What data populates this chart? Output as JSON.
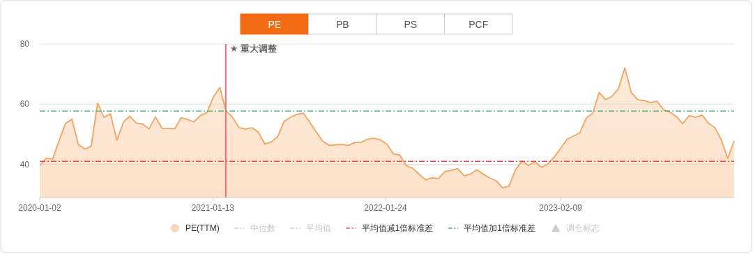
{
  "chart_data": {
    "type": "area",
    "x": [
      "2020-01-02",
      "2020-01-16",
      "2020-01-30",
      "2020-02-13",
      "2020-02-27",
      "2020-03-12",
      "2020-03-26",
      "2020-04-09",
      "2020-04-23",
      "2020-05-07",
      "2020-05-21",
      "2020-06-04",
      "2020-06-18",
      "2020-07-02",
      "2020-07-16",
      "2020-07-30",
      "2020-08-13",
      "2020-08-27",
      "2020-09-10",
      "2020-09-24",
      "2020-10-08",
      "2020-10-22",
      "2020-11-05",
      "2020-11-19",
      "2020-12-03",
      "2020-12-17",
      "2020-12-31",
      "2021-01-14",
      "2021-01-28",
      "2021-02-11",
      "2021-02-25",
      "2021-03-11",
      "2021-03-25",
      "2021-04-08",
      "2021-04-22",
      "2021-05-06",
      "2021-05-20",
      "2021-06-03",
      "2021-06-17",
      "2021-07-01",
      "2021-07-15",
      "2021-07-29",
      "2021-08-12",
      "2021-08-26",
      "2021-09-09",
      "2021-09-23",
      "2021-10-07",
      "2021-10-21",
      "2021-11-04",
      "2021-11-18",
      "2021-12-02",
      "2021-12-16",
      "2021-12-30",
      "2022-01-13",
      "2022-01-27",
      "2022-02-10",
      "2022-02-24",
      "2022-03-10",
      "2022-03-24",
      "2022-04-07",
      "2022-04-21",
      "2022-05-05",
      "2022-05-19",
      "2022-06-02",
      "2022-06-16",
      "2022-06-30",
      "2022-07-14",
      "2022-07-28",
      "2022-08-11",
      "2022-08-25",
      "2022-09-08",
      "2022-09-22",
      "2022-10-06",
      "2022-10-20",
      "2022-11-03",
      "2022-11-17",
      "2022-12-01",
      "2022-12-15",
      "2022-12-29",
      "2023-01-12",
      "2023-01-26",
      "2023-02-09",
      "2023-02-23",
      "2023-03-09",
      "2023-03-23",
      "2023-04-06",
      "2023-04-20",
      "2023-05-04",
      "2023-05-18",
      "2023-06-01",
      "2023-06-15",
      "2023-06-29",
      "2023-07-13",
      "2023-07-27",
      "2023-08-10",
      "2023-08-24",
      "2023-09-07",
      "2023-09-21",
      "2023-10-05",
      "2023-10-19",
      "2023-11-02",
      "2023-11-16",
      "2023-11-30",
      "2023-12-14",
      "2023-12-28",
      "2024-01-11",
      "2024-01-25",
      "2024-02-08",
      "2024-02-22"
    ],
    "series": [
      {
        "name": "PE(TTM)",
        "color": "#f5a35c",
        "values": [
          39.6,
          42,
          41.8,
          47.8,
          53.6,
          55,
          46.6,
          45.1,
          46,
          60.3,
          55.6,
          56.8,
          48,
          54,
          56,
          53.8,
          53.4,
          51.8,
          55.8,
          52,
          51.9,
          51.8,
          55.5,
          54.9,
          54.1,
          56.2,
          57.2,
          62.4,
          65.5,
          57.7,
          55.6,
          52.2,
          51.7,
          52.2,
          50.7,
          46.8,
          47.4,
          49.2,
          54.3,
          55.6,
          56.6,
          57,
          54,
          50.8,
          47.7,
          46.3,
          46.5,
          46.6,
          46.3,
          47.3,
          47.3,
          48.4,
          48.7,
          48.1,
          46.7,
          43.5,
          43.1,
          39.6,
          38.7,
          36.7,
          34.9,
          35.5,
          35.3,
          37.6,
          38,
          38.6,
          36.2,
          36.8,
          38.2,
          36.7,
          35.5,
          34.5,
          32.2,
          32.8,
          38.3,
          41.1,
          39.6,
          41,
          39,
          40.1,
          42.4,
          45.3,
          48.3,
          49.4,
          50.5,
          55.4,
          57,
          63.9,
          61.5,
          62.6,
          65.2,
          72,
          63.9,
          61.5,
          61.2,
          60.5,
          61,
          58.2,
          57.4,
          55.9,
          53.5,
          56.2,
          55.6,
          56.4,
          53.7,
          52.2,
          48.2,
          42,
          47.8
        ]
      }
    ],
    "xlim": [
      "2020-01-02",
      "2024-02-22"
    ],
    "xticks": [
      "2020-01-02",
      "2021-01-13",
      "2022-01-24",
      "2023-02-09"
    ],
    "ylim": [
      29,
      80
    ],
    "yticks": [
      40,
      60,
      80
    ],
    "grid": "y",
    "legend": "bottom",
    "ref_lines": [
      {
        "axis": "x",
        "value": "2021-02-10",
        "label": "★ 重大调整",
        "color": "#e57373",
        "line_style": "solid"
      },
      {
        "axis": "y",
        "value": 41,
        "label": "平均值减1倍标准差",
        "color": "#e0484f",
        "line_style": "dashdot"
      },
      {
        "axis": "y",
        "value": 57.7,
        "label": "平均值加1倍标准差",
        "color": "#3aa57a",
        "line_style": "dashdot"
      }
    ],
    "annotations": [
      "PE",
      "PB",
      "PS",
      "PCF",
      "中位数",
      "平均值",
      "调仓标志"
    ]
  }
}
